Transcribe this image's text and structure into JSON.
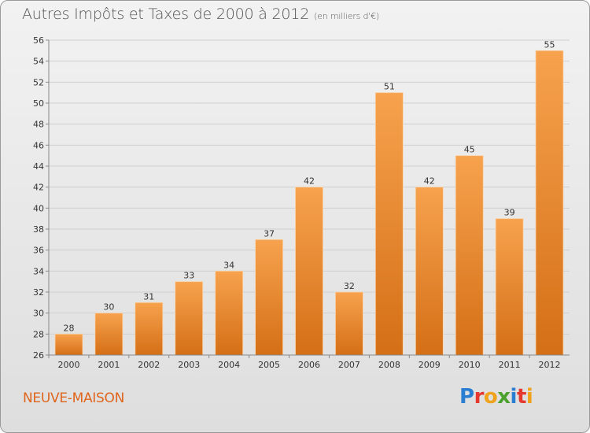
{
  "header": {
    "title": "Autres Impôts et Taxes de 2000 à 2012",
    "subtitle": "(en milliers d'€)"
  },
  "footer": {
    "commune": "NEUVE-MAISON",
    "logo_letters": [
      "P",
      "r",
      "o",
      "x",
      "i",
      "t",
      "i"
    ],
    "logo_colors": [
      "#2b7fd3",
      "#e5382e",
      "#f0a21a",
      "#4aa12e",
      "#2b7fd3",
      "#e5382e",
      "#f0a21a"
    ]
  },
  "colors": {
    "bar_light": "#f7a24e",
    "bar_dark": "#d46f16",
    "grid": "#cfcfcf",
    "title": "#555555",
    "commune": "#e0651c"
  },
  "chart_data": {
    "type": "bar",
    "title": "Autres Impôts et Taxes de 2000 à 2012",
    "subtitle": "(en milliers d'€)",
    "xlabel": "",
    "ylabel": "",
    "categories": [
      "2000",
      "2001",
      "2002",
      "2003",
      "2004",
      "2005",
      "2006",
      "2007",
      "2008",
      "2009",
      "2010",
      "2011",
      "2012"
    ],
    "values": [
      28,
      30,
      31,
      33,
      34,
      37,
      42,
      32,
      51,
      42,
      45,
      39,
      55
    ],
    "ylim": [
      26,
      56
    ],
    "yticks": [
      26,
      28,
      30,
      32,
      34,
      36,
      38,
      40,
      42,
      44,
      46,
      48,
      50,
      52,
      54,
      56
    ],
    "grid": true,
    "legend": "none",
    "data_labels": true
  }
}
